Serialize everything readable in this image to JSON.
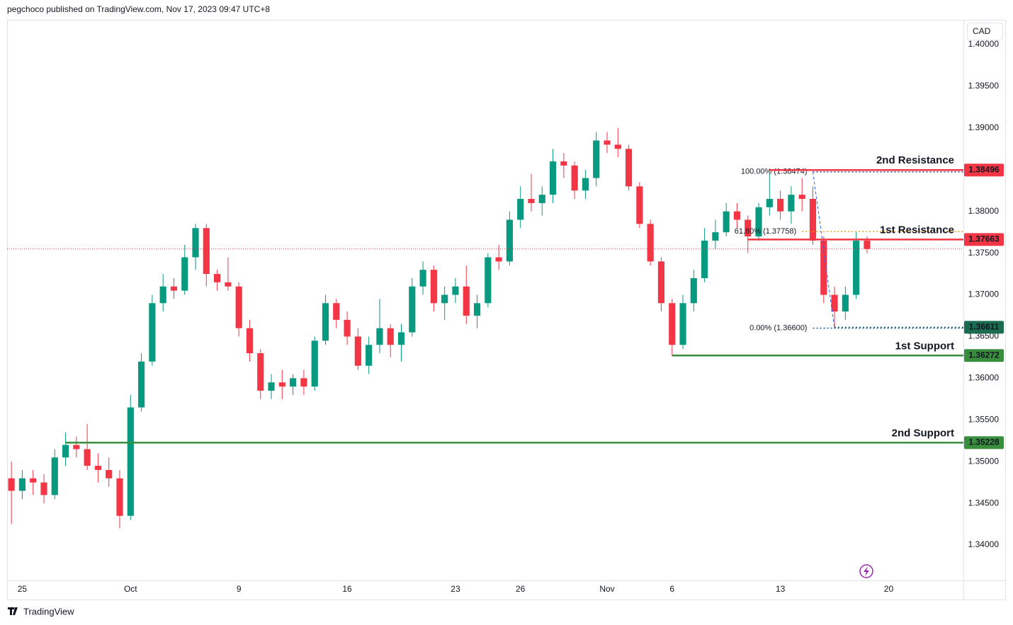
{
  "chart_data": {
    "type": "candlestick",
    "header": "pegchoco published on TradingView.com, Nov 17, 2023 09:47 UTC+8",
    "currency": "CAD",
    "brand": "TradingView",
    "up_color": "#089981",
    "down_color": "#f23645",
    "xlim": [
      -0.4,
      87.9
    ],
    "ylim": [
      1.33576,
      1.40297
    ],
    "xticks": [
      {
        "value": 1,
        "label": "25"
      },
      {
        "value": 11,
        "label": "Oct"
      },
      {
        "value": 21,
        "label": "9"
      },
      {
        "value": 31,
        "label": "16"
      },
      {
        "value": 41,
        "label": "23"
      },
      {
        "value": 47,
        "label": "26"
      },
      {
        "value": 55,
        "label": "Nov"
      },
      {
        "value": 61,
        "label": "6"
      },
      {
        "value": 71,
        "label": "13"
      },
      {
        "value": 81,
        "label": "20"
      }
    ],
    "yticks": [
      {
        "value": 1.34,
        "label": "1.34000"
      },
      {
        "value": 1.345,
        "label": "1.34500"
      },
      {
        "value": 1.35,
        "label": "1.35000"
      },
      {
        "value": 1.355,
        "label": "1.35500"
      },
      {
        "value": 1.36,
        "label": "1.36000"
      },
      {
        "value": 1.365,
        "label": "1.36500"
      },
      {
        "value": 1.37,
        "label": "1.37000"
      },
      {
        "value": 1.375,
        "label": "1.37500"
      },
      {
        "value": 1.38,
        "label": "1.38000"
      },
      {
        "value": 1.385,
        "label": "1.38500"
      },
      {
        "value": 1.39,
        "label": "1.39000"
      },
      {
        "value": 1.395,
        "label": "1.39500"
      },
      {
        "value": 1.4,
        "label": "1.40000"
      }
    ],
    "open": [
      1.348,
      1.3465,
      1.348,
      1.3475,
      1.346,
      1.3505,
      1.352,
      1.3515,
      1.3495,
      1.349,
      1.348,
      1.3435,
      1.3565,
      1.362,
      1.369,
      1.371,
      1.3705,
      1.3745,
      1.378,
      1.3725,
      1.3715,
      1.371,
      1.366,
      1.363,
      1.3585,
      1.3595,
      1.359,
      1.36,
      1.359,
      1.3645,
      1.369,
      1.367,
      1.365,
      1.3615,
      1.364,
      1.366,
      1.364,
      1.3655,
      1.371,
      1.373,
      1.369,
      1.37,
      1.371,
      1.3675,
      1.369,
      1.3745,
      1.374,
      1.379,
      1.3815,
      1.381,
      1.382,
      1.386,
      1.3855,
      1.3825,
      1.384,
      1.3885,
      1.388,
      1.3875,
      1.383,
      1.3785,
      1.374,
      1.369,
      1.364,
      1.369,
      1.372,
      1.3765,
      1.3775,
      1.38,
      1.379,
      1.377,
      1.3805,
      1.3815,
      1.38,
      1.382,
      1.3815,
      1.3765,
      1.37,
      1.368,
      1.37,
      1.3765
    ],
    "high": [
      1.35,
      1.349,
      1.349,
      1.3485,
      1.3515,
      1.3535,
      1.353,
      1.3545,
      1.351,
      1.3505,
      1.349,
      1.358,
      1.363,
      1.37,
      1.3725,
      1.372,
      1.376,
      1.3785,
      1.3785,
      1.373,
      1.3745,
      1.3715,
      1.367,
      1.3635,
      1.3605,
      1.361,
      1.3605,
      1.361,
      1.365,
      1.37,
      1.3695,
      1.368,
      1.366,
      1.365,
      1.3695,
      1.3665,
      1.3665,
      1.372,
      1.374,
      1.3735,
      1.371,
      1.372,
      1.3735,
      1.37,
      1.375,
      1.376,
      1.38,
      1.383,
      1.3845,
      1.383,
      1.3875,
      1.387,
      1.386,
      1.385,
      1.3895,
      1.3895,
      1.39,
      1.388,
      1.3835,
      1.379,
      1.3745,
      1.3695,
      1.37,
      1.373,
      1.378,
      1.379,
      1.381,
      1.381,
      1.3795,
      1.381,
      1.3847,
      1.3825,
      1.383,
      1.384,
      1.383,
      1.377,
      1.371,
      1.371,
      1.3775,
      1.377
    ],
    "low": [
      1.3425,
      1.3455,
      1.346,
      1.345,
      1.3455,
      1.3495,
      1.3505,
      1.349,
      1.3475,
      1.347,
      1.342,
      1.343,
      1.356,
      1.3615,
      1.368,
      1.3695,
      1.37,
      1.373,
      1.371,
      1.3705,
      1.3705,
      1.365,
      1.362,
      1.3575,
      1.3575,
      1.3575,
      1.358,
      1.358,
      1.3585,
      1.364,
      1.366,
      1.364,
      1.361,
      1.3605,
      1.363,
      1.3625,
      1.362,
      1.365,
      1.37,
      1.368,
      1.367,
      1.369,
      1.3665,
      1.366,
      1.3685,
      1.373,
      1.3735,
      1.378,
      1.38,
      1.3795,
      1.381,
      1.384,
      1.3815,
      1.3815,
      1.383,
      1.387,
      1.3865,
      1.3825,
      1.378,
      1.3735,
      1.368,
      1.3627,
      1.3635,
      1.368,
      1.3715,
      1.3755,
      1.377,
      1.378,
      1.375,
      1.3765,
      1.3795,
      1.379,
      1.3785,
      1.38,
      1.376,
      1.369,
      1.366,
      1.367,
      1.3695,
      1.375
    ],
    "close": [
      1.3465,
      1.348,
      1.3475,
      1.346,
      1.3505,
      1.352,
      1.3515,
      1.3495,
      1.349,
      1.348,
      1.3435,
      1.3565,
      1.362,
      1.369,
      1.371,
      1.3705,
      1.3745,
      1.378,
      1.3725,
      1.3715,
      1.371,
      1.366,
      1.363,
      1.3585,
      1.3595,
      1.359,
      1.36,
      1.359,
      1.3645,
      1.369,
      1.367,
      1.365,
      1.3615,
      1.364,
      1.366,
      1.364,
      1.3655,
      1.371,
      1.373,
      1.369,
      1.37,
      1.371,
      1.3675,
      1.369,
      1.3745,
      1.374,
      1.379,
      1.3815,
      1.381,
      1.382,
      1.386,
      1.3855,
      1.3825,
      1.384,
      1.3885,
      1.388,
      1.3875,
      1.383,
      1.3785,
      1.374,
      1.369,
      1.364,
      1.369,
      1.372,
      1.3765,
      1.3775,
      1.38,
      1.379,
      1.377,
      1.3805,
      1.3815,
      1.38,
      1.382,
      1.3815,
      1.3765,
      1.37,
      1.368,
      1.37,
      1.3765,
      1.3755
    ],
    "levels": [
      {
        "name": "2nd Resistance",
        "value": 1.38496,
        "color": "#f23645",
        "start": 70
      },
      {
        "name": "1st Resistance",
        "value": 1.37663,
        "color": "#f23645",
        "start": 68
      },
      {
        "name": "1st Support",
        "value": 1.36272,
        "color": "#388e3c",
        "start": 61
      },
      {
        "name": "2nd Support",
        "value": 1.35228,
        "color": "#388e3c",
        "start": 5
      }
    ],
    "price_marker": {
      "value": 1.36611,
      "color": "#1b6b50",
      "start": 76
    },
    "fib": [
      {
        "label": "100.00% (1.38474)",
        "value": 1.38474,
        "color": "#1e4fa0",
        "start": 74
      },
      {
        "label": "61.80% (1.37758)",
        "value": 1.37758,
        "color": "#e8a317",
        "start": 73
      },
      {
        "label": "0.00% (1.36600)",
        "value": 1.366,
        "color": "#1e4fa0",
        "start": 74
      }
    ]
  }
}
